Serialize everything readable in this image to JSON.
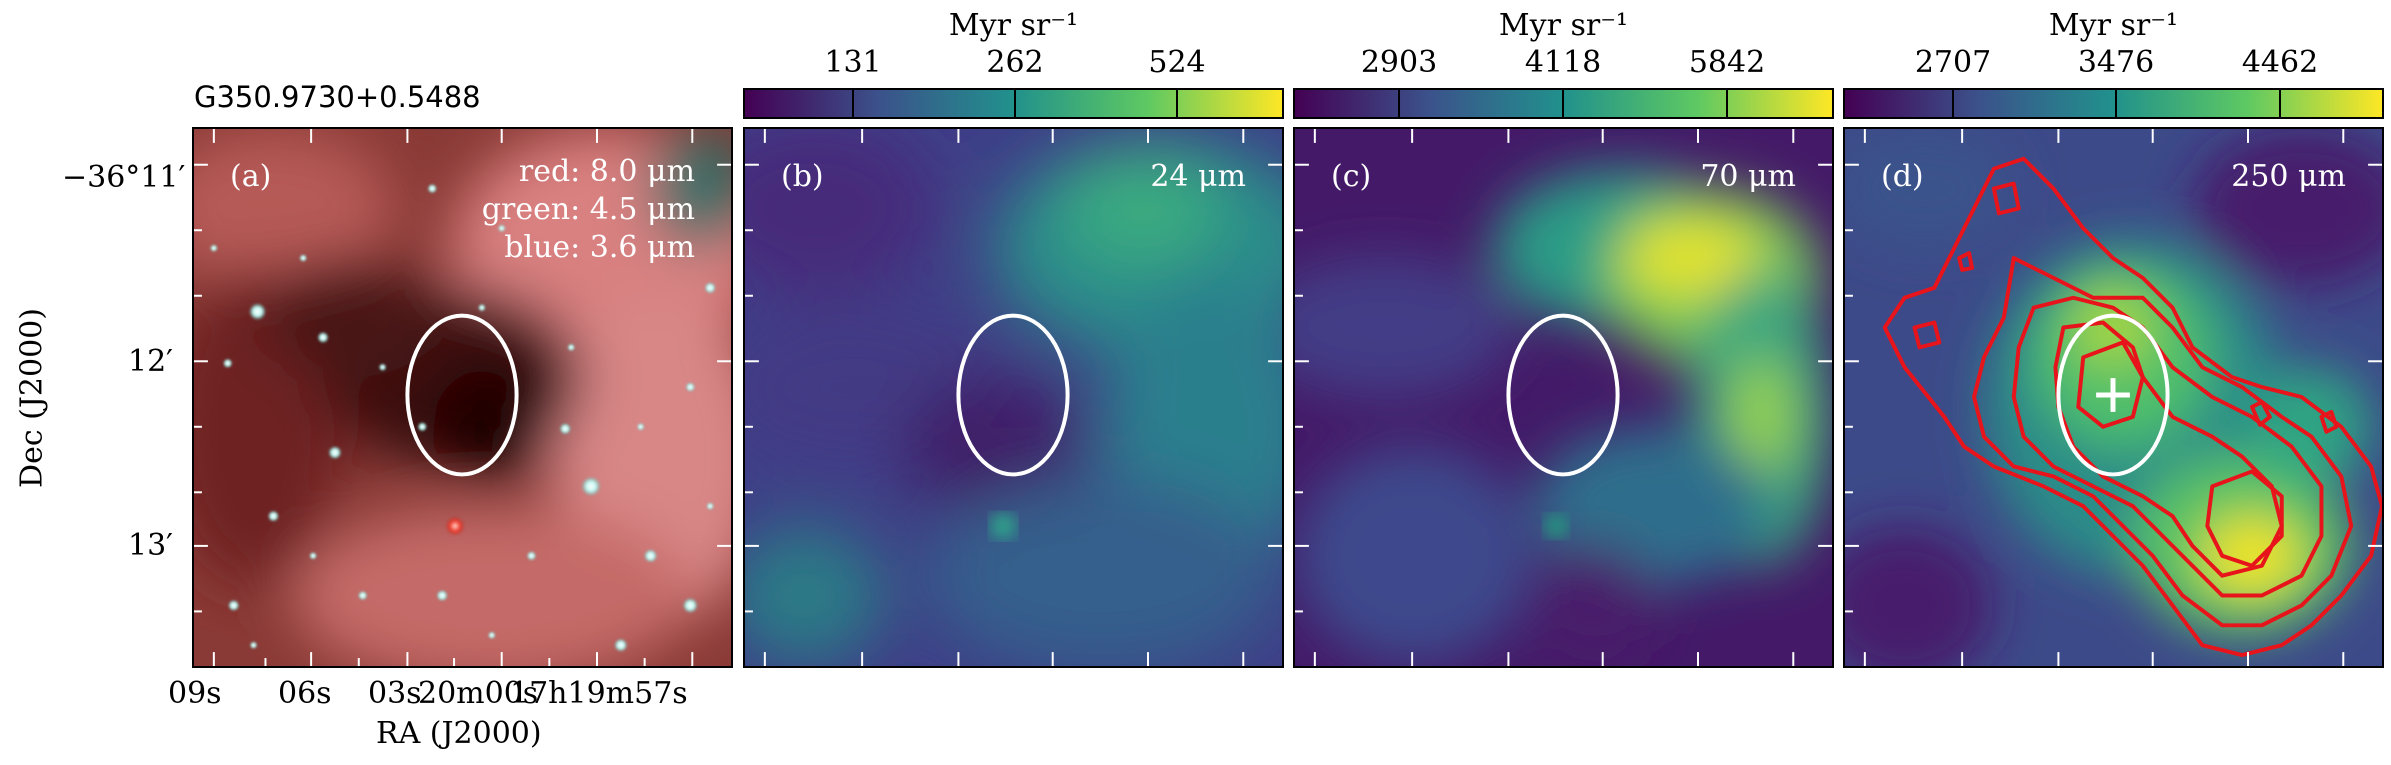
{
  "source_name": "G350.9730+0.5488",
  "axes": {
    "ylabel": "Dec (J2000)",
    "xlabel": "RA (J2000)",
    "dec_ticks": [
      "−36°11′",
      "12′",
      "13′"
    ],
    "ra_ticks": [
      "09s",
      "06s",
      "03s",
      "20m00s",
      "17h19m57s"
    ]
  },
  "panels": [
    {
      "id": "a",
      "label": "(a)",
      "bands": [
        "red: 8.0 μm",
        "green: 4.5 μm",
        "blue: 3.6 μm"
      ]
    },
    {
      "id": "b",
      "label": "(b)",
      "wavelength": "24 μm",
      "colorbar": {
        "unit": "Myr sr⁻¹",
        "ticks": [
          "131",
          "262",
          "524"
        ]
      }
    },
    {
      "id": "c",
      "label": "(c)",
      "wavelength": "70 μm",
      "colorbar": {
        "unit": "Myr sr⁻¹",
        "ticks": [
          "2903",
          "4118",
          "5842"
        ]
      }
    },
    {
      "id": "d",
      "label": "(d)",
      "wavelength": "250 μm",
      "colorbar": {
        "unit": "Myr sr⁻¹",
        "ticks": [
          "2707",
          "3476",
          "4462"
        ]
      }
    }
  ],
  "colors": {
    "viridis_low": "#440154",
    "viridis_mid": "#21918c",
    "viridis_high": "#fde725",
    "contour": "#e8141b",
    "ellipse": "#ffffff"
  }
}
